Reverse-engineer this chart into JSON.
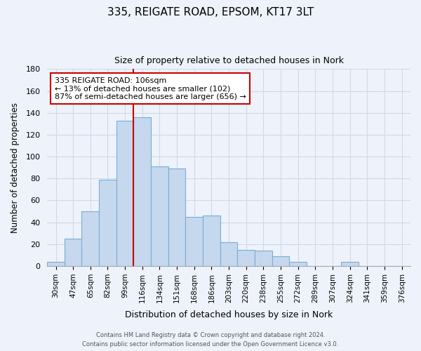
{
  "title": "335, REIGATE ROAD, EPSOM, KT17 3LT",
  "subtitle": "Size of property relative to detached houses in Nork",
  "xlabel": "Distribution of detached houses by size in Nork",
  "ylabel": "Number of detached properties",
  "bar_color": "#c5d8ee",
  "bar_edge_color": "#7aadd4",
  "background_color": "#eef2fa",
  "grid_color": "#d0d8e8",
  "categories": [
    "30sqm",
    "47sqm",
    "65sqm",
    "82sqm",
    "99sqm",
    "116sqm",
    "134sqm",
    "151sqm",
    "168sqm",
    "186sqm",
    "203sqm",
    "220sqm",
    "238sqm",
    "255sqm",
    "272sqm",
    "289sqm",
    "307sqm",
    "324sqm",
    "341sqm",
    "359sqm",
    "376sqm"
  ],
  "values": [
    4,
    25,
    50,
    79,
    133,
    136,
    91,
    89,
    45,
    46,
    22,
    15,
    14,
    9,
    4,
    0,
    0,
    4,
    0,
    0,
    0
  ],
  "ylim": [
    0,
    180
  ],
  "yticks": [
    0,
    20,
    40,
    60,
    80,
    100,
    120,
    140,
    160,
    180
  ],
  "property_line_x": 4.5,
  "annotation_line1": "335 REIGATE ROAD: 106sqm",
  "annotation_line2": "← 13% of detached houses are smaller (102)",
  "annotation_line3": "87% of semi-detached houses are larger (656) →",
  "footnote1": "Contains HM Land Registry data © Crown copyright and database right 2024.",
  "footnote2": "Contains public sector information licensed under the Open Government Licence v3.0."
}
